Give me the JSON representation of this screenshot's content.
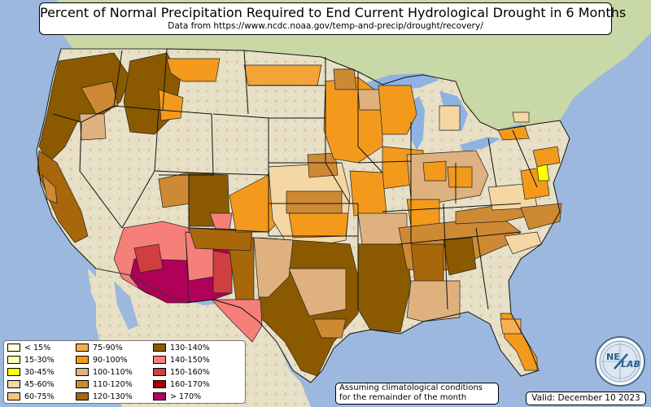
{
  "title": "Percent of Normal Precipitation Required to End Current Hydrological Drought in 6 Months",
  "subtitle": "Data from https://www.ncdc.noaa.gov/temp-and-precip/drought/recovery/",
  "note_lines": [
    "Assuming climatological conditions",
    "for the remainder of the month"
  ],
  "valid": "Valid: December 10 2023",
  "logo_text": [
    "NE",
    "LAB"
  ],
  "legend": [
    {
      "label": "< 15%",
      "color": "#ffffe0"
    },
    {
      "label": "15-30%",
      "color": "#ffffb0"
    },
    {
      "label": "30-45%",
      "color": "#ffff00"
    },
    {
      "label": "45-60%",
      "color": "#f5d7a3"
    },
    {
      "label": "60-75%",
      "color": "#f7c57f"
    },
    {
      "label": "75-90%",
      "color": "#f6b050"
    },
    {
      "label": "90-100%",
      "color": "#f39a1c"
    },
    {
      "label": "100-110%",
      "color": "#dfb17f"
    },
    {
      "label": "110-120%",
      "color": "#cd8934"
    },
    {
      "label": "120-130%",
      "color": "#a8670a"
    },
    {
      "label": "130-140%",
      "color": "#8b5a00"
    },
    {
      "label": "140-150%",
      "color": "#f67f7a"
    },
    {
      "label": "150-160%",
      "color": "#cf3f3f"
    },
    {
      "label": "160-170%",
      "color": "#a50000"
    },
    {
      "label": "> 170%",
      "color": "#b00058"
    }
  ],
  "map_colors": {
    "ocean": "#9db8de",
    "land": "#e5dfc3",
    "forest": "#c5d6a2",
    "lake": "#8fb2e2",
    "border": "#111111"
  }
}
